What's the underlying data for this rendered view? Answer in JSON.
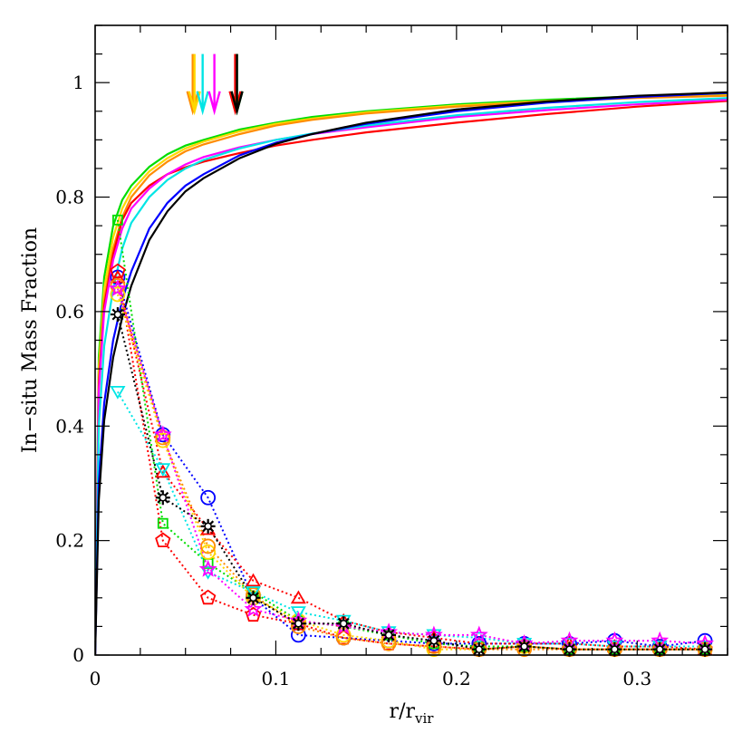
{
  "chart_data": {
    "type": "line",
    "title": "",
    "xlabel": "r/r",
    "xlabel_sub": "vir",
    "ylabel": "In−situ Mass Fraction",
    "xlim": [
      0,
      0.35
    ],
    "ylim": [
      0,
      1.1
    ],
    "x_ticks": [
      0,
      0.1,
      0.2,
      0.3
    ],
    "x_tick_labels": [
      "0",
      "0.1",
      "0.2",
      "0.3"
    ],
    "y_ticks": [
      0,
      0.2,
      0.4,
      0.6,
      0.8,
      1
    ],
    "y_tick_labels": [
      "0",
      "0.2",
      "0.4",
      "0.6",
      "0.8",
      "1"
    ],
    "x_minor_step": 0.025,
    "y_minor_step": 0.05,
    "grid": false,
    "cumulative_series": [
      {
        "name": "green",
        "color": "#00dd00",
        "x": [
          0,
          0.002,
          0.005,
          0.01,
          0.015,
          0.02,
          0.03,
          0.04,
          0.05,
          0.06,
          0.08,
          0.1,
          0.12,
          0.15,
          0.2,
          0.25,
          0.3,
          0.35
        ],
        "values": [
          0,
          0.52,
          0.66,
          0.75,
          0.795,
          0.82,
          0.853,
          0.875,
          0.89,
          0.9,
          0.918,
          0.93,
          0.94,
          0.95,
          0.962,
          0.97,
          0.976,
          0.98
        ]
      },
      {
        "name": "yellow",
        "color": "#ffd700",
        "x": [
          0,
          0.002,
          0.005,
          0.01,
          0.015,
          0.02,
          0.03,
          0.04,
          0.05,
          0.06,
          0.08,
          0.1,
          0.12,
          0.15,
          0.2,
          0.25,
          0.3,
          0.35
        ],
        "values": [
          0,
          0.5,
          0.64,
          0.73,
          0.78,
          0.81,
          0.845,
          0.868,
          0.885,
          0.897,
          0.915,
          0.928,
          0.937,
          0.948,
          0.96,
          0.968,
          0.974,
          0.978
        ]
      },
      {
        "name": "orange",
        "color": "#ff8c00",
        "x": [
          0,
          0.002,
          0.005,
          0.01,
          0.015,
          0.02,
          0.03,
          0.04,
          0.05,
          0.06,
          0.08,
          0.1,
          0.12,
          0.15,
          0.2,
          0.25,
          0.3,
          0.35
        ],
        "values": [
          0,
          0.48,
          0.62,
          0.71,
          0.765,
          0.8,
          0.838,
          0.862,
          0.88,
          0.892,
          0.91,
          0.925,
          0.935,
          0.946,
          0.958,
          0.967,
          0.973,
          0.977
        ]
      },
      {
        "name": "red",
        "color": "#ff0000",
        "x": [
          0,
          0.002,
          0.005,
          0.01,
          0.015,
          0.02,
          0.03,
          0.04,
          0.05,
          0.06,
          0.08,
          0.1,
          0.12,
          0.15,
          0.2,
          0.25,
          0.3,
          0.35
        ],
        "values": [
          0,
          0.47,
          0.61,
          0.7,
          0.76,
          0.79,
          0.82,
          0.84,
          0.852,
          0.862,
          0.877,
          0.89,
          0.9,
          0.913,
          0.93,
          0.945,
          0.958,
          0.968
        ]
      },
      {
        "name": "magenta",
        "color": "#ff00ff",
        "x": [
          0,
          0.002,
          0.005,
          0.01,
          0.015,
          0.02,
          0.03,
          0.04,
          0.05,
          0.06,
          0.08,
          0.1,
          0.12,
          0.15,
          0.2,
          0.25,
          0.3,
          0.35
        ],
        "values": [
          0,
          0.46,
          0.6,
          0.69,
          0.745,
          0.78,
          0.815,
          0.84,
          0.857,
          0.87,
          0.887,
          0.9,
          0.91,
          0.922,
          0.94,
          0.952,
          0.962,
          0.97
        ]
      },
      {
        "name": "cyan",
        "color": "#00e5e5",
        "x": [
          0,
          0.002,
          0.005,
          0.01,
          0.015,
          0.02,
          0.03,
          0.04,
          0.05,
          0.06,
          0.08,
          0.1,
          0.12,
          0.15,
          0.2,
          0.25,
          0.3,
          0.35
        ],
        "values": [
          0,
          0.4,
          0.54,
          0.64,
          0.71,
          0.755,
          0.8,
          0.83,
          0.85,
          0.865,
          0.885,
          0.9,
          0.911,
          0.925,
          0.943,
          0.956,
          0.966,
          0.973
        ]
      },
      {
        "name": "blue",
        "color": "#0000ff",
        "x": [
          0,
          0.002,
          0.005,
          0.01,
          0.015,
          0.02,
          0.03,
          0.04,
          0.05,
          0.06,
          0.08,
          0.1,
          0.12,
          0.15,
          0.2,
          0.25,
          0.3,
          0.35
        ],
        "values": [
          0,
          0.3,
          0.44,
          0.55,
          0.62,
          0.67,
          0.745,
          0.79,
          0.82,
          0.84,
          0.873,
          0.895,
          0.91,
          0.928,
          0.95,
          0.965,
          0.975,
          0.982
        ]
      },
      {
        "name": "black",
        "color": "#000000",
        "x": [
          0,
          0.002,
          0.005,
          0.01,
          0.015,
          0.02,
          0.03,
          0.04,
          0.05,
          0.06,
          0.08,
          0.1,
          0.12,
          0.15,
          0.2,
          0.25,
          0.3,
          0.35
        ],
        "values": [
          0,
          0.27,
          0.41,
          0.52,
          0.59,
          0.645,
          0.725,
          0.775,
          0.81,
          0.833,
          0.868,
          0.893,
          0.91,
          0.93,
          0.953,
          0.967,
          0.977,
          0.983
        ]
      }
    ],
    "profile_series": [
      {
        "name": "blue",
        "color": "#0000ff",
        "marker": "circle",
        "x": [
          0.0125,
          0.0375,
          0.0625,
          0.0875,
          0.1125,
          0.1375,
          0.1625,
          0.1875,
          0.2125,
          0.2375,
          0.2625,
          0.2875,
          0.3125,
          0.3375
        ],
        "values": [
          0.66,
          0.385,
          0.275,
          0.1,
          0.035,
          0.03,
          0.025,
          0.02,
          0.02,
          0.02,
          0.02,
          0.025,
          0.015,
          0.025
        ]
      },
      {
        "name": "red triangles",
        "color": "#ff0000",
        "marker": "triangle",
        "x": [
          0.0125,
          0.0375,
          0.0625,
          0.0875,
          0.1125,
          0.1375,
          0.1625,
          0.1875,
          0.2125,
          0.2375,
          0.2625,
          0.2875,
          0.3125,
          0.3375
        ],
        "values": [
          0.66,
          0.32,
          0.22,
          0.13,
          0.1,
          0.06,
          0.04,
          0.03,
          0.02,
          0.02,
          0.02,
          0.015,
          0.015,
          0.01
        ]
      },
      {
        "name": "red pentagons",
        "color": "#ff0000",
        "marker": "pentagon",
        "x": [
          0.0125,
          0.0375,
          0.0625,
          0.0875,
          0.1125,
          0.1375,
          0.1625,
          0.1875,
          0.2125,
          0.2375,
          0.2625,
          0.2875,
          0.3125,
          0.3375
        ],
        "values": [
          0.67,
          0.2,
          0.1,
          0.07,
          0.055,
          0.03,
          0.02,
          0.015,
          0.01,
          0.015,
          0.01,
          0.01,
          0.01,
          0.01
        ]
      },
      {
        "name": "green",
        "color": "#00dd00",
        "marker": "square",
        "x": [
          0.0125,
          0.0375,
          0.0625,
          0.0875,
          0.1125,
          0.1375,
          0.1625,
          0.1875,
          0.2125,
          0.2375,
          0.2625,
          0.2875,
          0.3125,
          0.3375
        ],
        "values": [
          0.76,
          0.23,
          0.16,
          0.11,
          0.06,
          0.05,
          0.035,
          0.02,
          0.015,
          0.015,
          0.01,
          0.01,
          0.01,
          0.01
        ]
      },
      {
        "name": "yellow",
        "color": "#ffd700",
        "marker": "circle",
        "x": [
          0.0125,
          0.0375,
          0.0625,
          0.0875,
          0.1125,
          0.1375,
          0.1625,
          0.1875,
          0.2125,
          0.2375,
          0.2625,
          0.2875,
          0.3125,
          0.3375
        ],
        "values": [
          0.63,
          0.375,
          0.18,
          0.1,
          0.06,
          0.035,
          0.025,
          0.01,
          0.01,
          0.015,
          0.01,
          0.01,
          0.01,
          0.01
        ]
      },
      {
        "name": "orange",
        "color": "#ff8c00",
        "marker": "circle",
        "x": [
          0.0125,
          0.0375,
          0.0625,
          0.0875,
          0.1125,
          0.1375,
          0.1625,
          0.1875,
          0.2125,
          0.2375,
          0.2625,
          0.2875,
          0.3125,
          0.3375
        ],
        "values": [
          0.645,
          0.38,
          0.19,
          0.105,
          0.05,
          0.03,
          0.02,
          0.015,
          0.01,
          0.01,
          0.01,
          0.01,
          0.01,
          0.01
        ]
      },
      {
        "name": "cyan",
        "color": "#00e5e5",
        "marker": "triangle-down",
        "x": [
          0.0125,
          0.0375,
          0.0625,
          0.0875,
          0.1125,
          0.1375,
          0.1625,
          0.1875,
          0.2125,
          0.2375,
          0.2625,
          0.2875,
          0.3125,
          0.3375
        ],
        "values": [
          0.46,
          0.325,
          0.145,
          0.11,
          0.075,
          0.06,
          0.04,
          0.035,
          0.03,
          0.02,
          0.02,
          0.015,
          0.015,
          0.015
        ]
      },
      {
        "name": "magenta",
        "color": "#ff00ff",
        "marker": "star",
        "x": [
          0.0125,
          0.0375,
          0.0625,
          0.0875,
          0.1125,
          0.1375,
          0.1625,
          0.1875,
          0.2125,
          0.2375,
          0.2625,
          0.2875,
          0.3125,
          0.3375
        ],
        "values": [
          0.64,
          0.385,
          0.15,
          0.08,
          0.06,
          0.05,
          0.04,
          0.035,
          0.035,
          0.02,
          0.025,
          0.025,
          0.025,
          0.02
        ]
      },
      {
        "name": "black",
        "color": "#000000",
        "marker": "asterisk",
        "x": [
          0.0125,
          0.0375,
          0.0625,
          0.0875,
          0.1125,
          0.1375,
          0.1625,
          0.1875,
          0.2125,
          0.2375,
          0.2625,
          0.2875,
          0.3125,
          0.3375
        ],
        "values": [
          0.595,
          0.275,
          0.225,
          0.1,
          0.055,
          0.055,
          0.035,
          0.025,
          0.01,
          0.015,
          0.01,
          0.01,
          0.01,
          0.01
        ]
      }
    ],
    "arrows": [
      {
        "color": "#ff8c00",
        "x": 0.054
      },
      {
        "color": "#ffd700",
        "x": 0.055
      },
      {
        "color": "#00e5e5",
        "x": 0.0595
      },
      {
        "color": "#ff00ff",
        "x": 0.066
      },
      {
        "color": "#ff0000",
        "x": 0.0775
      },
      {
        "color": "#00dd00",
        "x": 0.0785
      },
      {
        "color": "#000000",
        "x": 0.0785
      }
    ],
    "arrow_y_range": [
      0.95,
      1.05
    ]
  }
}
